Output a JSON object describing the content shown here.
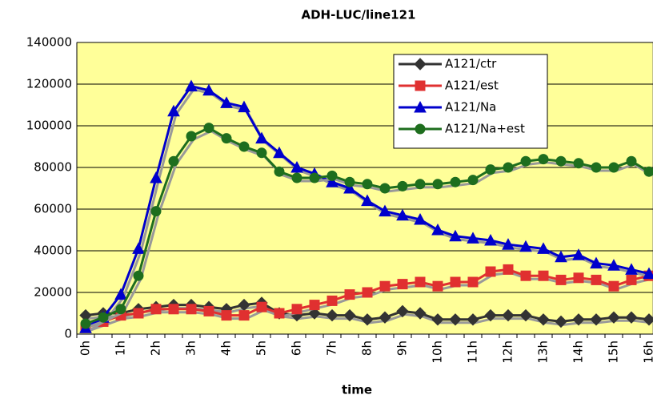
{
  "chart_data": {
    "type": "line",
    "title": "ADH-LUC/line121",
    "x_label": "time",
    "categories": [
      "0h",
      null,
      "1h",
      null,
      "2h",
      null,
      "3h",
      null,
      "4h",
      null,
      "5h",
      null,
      "6h",
      null,
      "7h",
      null,
      "8h",
      null,
      "9h",
      null,
      "10h",
      null,
      "11h",
      null,
      "12h",
      null,
      "13h",
      null,
      "14h",
      null,
      "15h",
      null,
      "16h"
    ],
    "series": [
      {
        "name": "A121/ctr",
        "color": "#333333",
        "marker": "diamond",
        "values": [
          9000,
          10000,
          10000,
          12000,
          13000,
          14000,
          14000,
          13000,
          12000,
          14000,
          15000,
          10000,
          9000,
          10000,
          9000,
          9000,
          7000,
          8000,
          11000,
          10000,
          7000,
          7000,
          7000,
          9000,
          9000,
          9000,
          7000,
          6000,
          7000,
          7000,
          8000,
          8000,
          7000
        ]
      },
      {
        "name": "A121/est",
        "color": "#e03030",
        "marker": "square",
        "values": [
          3000,
          6000,
          9000,
          10000,
          12000,
          12000,
          12000,
          11000,
          9000,
          9000,
          13000,
          10000,
          12000,
          14000,
          16000,
          19000,
          20000,
          23000,
          24000,
          25000,
          23000,
          25000,
          25000,
          30000,
          31000,
          28000,
          28000,
          26000,
          27000,
          26000,
          23000,
          26000,
          28000
        ]
      },
      {
        "name": "A121/Na",
        "color": "#0000cc",
        "marker": "triangle",
        "values": [
          3000,
          8000,
          19000,
          41000,
          75000,
          107000,
          119000,
          117000,
          111000,
          109000,
          94000,
          87000,
          80000,
          77000,
          73000,
          70000,
          64000,
          59000,
          57000,
          55000,
          50000,
          47000,
          46000,
          45000,
          43000,
          42000,
          41000,
          37000,
          38000,
          34000,
          33000,
          31000,
          29000
        ]
      },
      {
        "name": "A121/Na+est",
        "color": "#1e6e1e",
        "marker": "circle",
        "values": [
          5000,
          8000,
          12000,
          28000,
          59000,
          83000,
          95000,
          99000,
          94000,
          90000,
          87000,
          78000,
          75000,
          75000,
          76000,
          73000,
          72000,
          70000,
          71000,
          72000,
          72000,
          73000,
          74000,
          79000,
          80000,
          83000,
          84000,
          83000,
          82000,
          80000,
          80000,
          83000,
          78000
        ]
      }
    ],
    "ylim": [
      0,
      140000
    ],
    "yticks": [
      0,
      20000,
      40000,
      60000,
      80000,
      100000,
      120000,
      140000
    ],
    "grid": true,
    "plot_background": "#ffff99"
  }
}
